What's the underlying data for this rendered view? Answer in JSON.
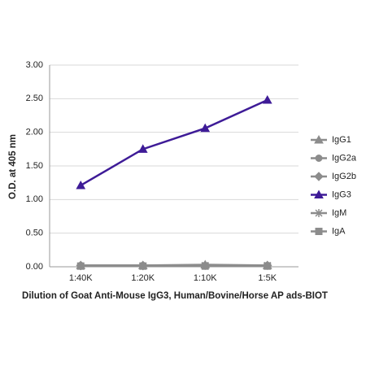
{
  "chart_data": {
    "type": "line",
    "x_label": "Dilution of Goat Anti-Mouse IgG3, Human/Bovine/Horse AP ads-BIOT",
    "y_label": "O.D. at 405 nm",
    "categories": [
      "1:40K",
      "1:20K",
      "1:10K",
      "1:5K"
    ],
    "series": [
      {
        "name": "IgG1",
        "color": "#8c8c8c",
        "marker": "triangle",
        "values": [
          0.02,
          0.02,
          0.03,
          0.02
        ]
      },
      {
        "name": "IgG2a",
        "color": "#8c8c8c",
        "marker": "circle",
        "values": [
          0.02,
          0.02,
          0.02,
          0.02
        ]
      },
      {
        "name": "IgG2b",
        "color": "#8c8c8c",
        "marker": "diamond",
        "values": [
          0.02,
          0.02,
          0.02,
          0.02
        ]
      },
      {
        "name": "IgG3",
        "color": "#3e1b97",
        "marker": "triangle",
        "values": [
          1.21,
          1.75,
          2.06,
          2.48
        ]
      },
      {
        "name": "IgM",
        "color": "#8c8c8c",
        "marker": "star",
        "values": [
          0.01,
          0.01,
          0.02,
          0.02
        ]
      },
      {
        "name": "IgA",
        "color": "#8c8c8c",
        "marker": "square",
        "values": [
          0.01,
          0.01,
          0.01,
          0.01
        ]
      }
    ],
    "ylim": [
      0,
      3
    ],
    "yticks": [
      {
        "value": 0,
        "label": "0.00"
      },
      {
        "value": 0.5,
        "label": "0.50"
      },
      {
        "value": 1,
        "label": "1.00"
      },
      {
        "value": 1.5,
        "label": "1.50"
      },
      {
        "value": 2,
        "label": "2.00"
      },
      {
        "value": 2.5,
        "label": "2.50"
      },
      {
        "value": 3,
        "label": "3.00"
      }
    ],
    "grid": true,
    "legend": "right"
  }
}
